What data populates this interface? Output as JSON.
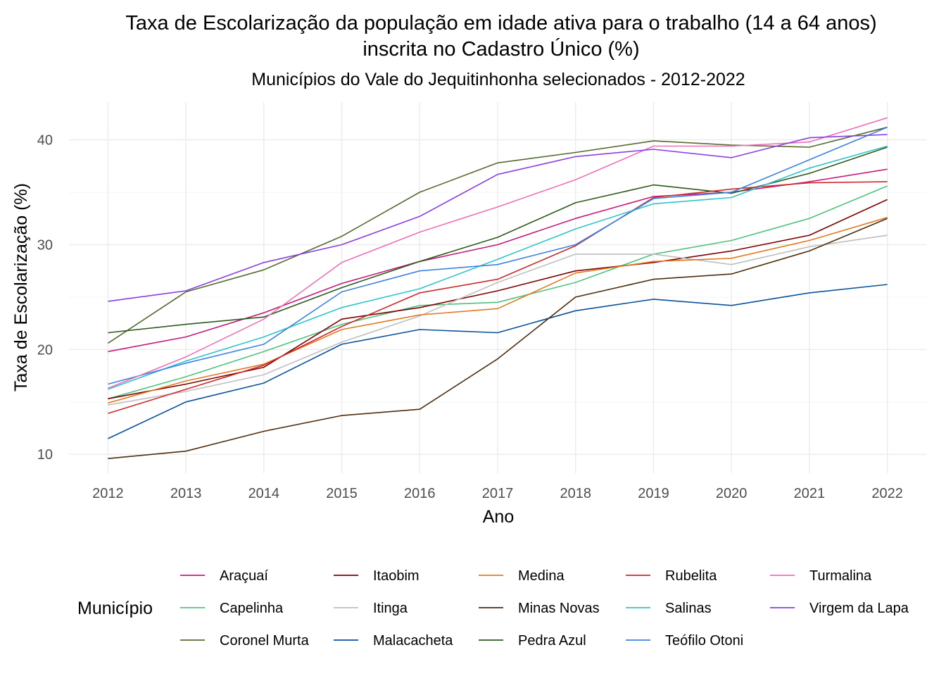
{
  "chart_data": {
    "type": "line",
    "title_line1": "Taxa de Escolarização da população em idade ativa para o trabalho (14 a 64 anos)",
    "title_line2": "inscrita no Cadastro Único (%)",
    "subtitle": "Municípios do Vale do Jequitinhonha selecionados - 2012-2022",
    "xlabel": "Ano",
    "ylabel": "Taxa de Escolarização (%)",
    "x": [
      2012,
      2013,
      2014,
      2015,
      2016,
      2017,
      2018,
      2019,
      2020,
      2021,
      2022
    ],
    "y_ticks": [
      10,
      20,
      30,
      40
    ],
    "ylim": [
      8.2,
      43.6
    ],
    "grid": true,
    "legend_title": "Município",
    "legend_position": "bottom",
    "series": [
      {
        "name": "Araçuaí",
        "color": "#c51b7d",
        "values": [
          19.8,
          21.2,
          23.5,
          26.3,
          28.4,
          30.0,
          32.5,
          34.6,
          35.0,
          36.0,
          37.2
        ]
      },
      {
        "name": "Capelinha",
        "color": "#4dc47e",
        "values": [
          15.3,
          17.4,
          19.8,
          22.4,
          24.2,
          24.5,
          26.4,
          29.1,
          30.4,
          32.5,
          35.6
        ]
      },
      {
        "name": "Coronel Murta",
        "color": "#556b2f",
        "values": [
          20.6,
          25.5,
          27.6,
          30.8,
          35.0,
          37.8,
          38.8,
          39.9,
          39.5,
          39.3,
          41.2
        ]
      },
      {
        "name": "Itaobim",
        "color": "#7f0000",
        "values": [
          15.3,
          16.7,
          18.3,
          22.9,
          24.0,
          25.6,
          27.5,
          28.3,
          29.4,
          30.9,
          34.3
        ]
      },
      {
        "name": "Itinga",
        "color": "#bfbfbf",
        "values": [
          14.7,
          16.0,
          17.6,
          20.7,
          23.2,
          26.4,
          29.1,
          29.1,
          28.1,
          29.8,
          30.9
        ]
      },
      {
        "name": "Malacacheta",
        "color": "#08519c",
        "values": [
          11.5,
          15.0,
          16.8,
          20.5,
          21.9,
          21.6,
          23.7,
          24.8,
          24.2,
          25.4,
          26.2
        ]
      },
      {
        "name": "Medina",
        "color": "#e07b1f",
        "values": [
          14.9,
          17.0,
          18.6,
          21.9,
          23.3,
          23.9,
          27.3,
          28.4,
          28.7,
          30.4,
          32.6
        ]
      },
      {
        "name": "Minas Novas",
        "color": "#4d2d0e",
        "values": [
          9.6,
          10.3,
          12.2,
          13.7,
          14.3,
          19.1,
          25.0,
          26.7,
          27.2,
          29.4,
          32.5
        ]
      },
      {
        "name": "Pedra Azul",
        "color": "#2d5a1b",
        "values": [
          21.6,
          22.4,
          23.1,
          25.9,
          28.4,
          30.7,
          34.0,
          35.7,
          34.9,
          36.8,
          39.3
        ]
      },
      {
        "name": "Rubelita",
        "color": "#cc2a2a",
        "values": [
          13.9,
          16.2,
          18.5,
          22.2,
          25.4,
          26.7,
          29.9,
          34.5,
          35.3,
          35.9,
          36.0
        ]
      },
      {
        "name": "Salinas",
        "color": "#2ec4cc",
        "values": [
          16.2,
          18.9,
          21.2,
          24.0,
          25.8,
          28.6,
          31.5,
          33.9,
          34.5,
          37.3,
          39.4
        ]
      },
      {
        "name": "Teófilo Otoni",
        "color": "#3b82e0",
        "values": [
          16.7,
          18.7,
          20.5,
          25.5,
          27.5,
          28.1,
          30.0,
          34.4,
          35.0,
          38.1,
          41.2
        ]
      },
      {
        "name": "Turmalina",
        "color": "#f06fb8",
        "values": [
          16.3,
          19.3,
          22.9,
          28.3,
          31.2,
          33.6,
          36.2,
          39.4,
          39.4,
          39.8,
          42.1
        ]
      },
      {
        "name": "Virgem da Lapa",
        "color": "#8b3fe0",
        "values": [
          24.6,
          25.6,
          28.3,
          30.0,
          32.7,
          36.7,
          38.4,
          39.1,
          38.3,
          40.2,
          40.5
        ]
      }
    ]
  }
}
